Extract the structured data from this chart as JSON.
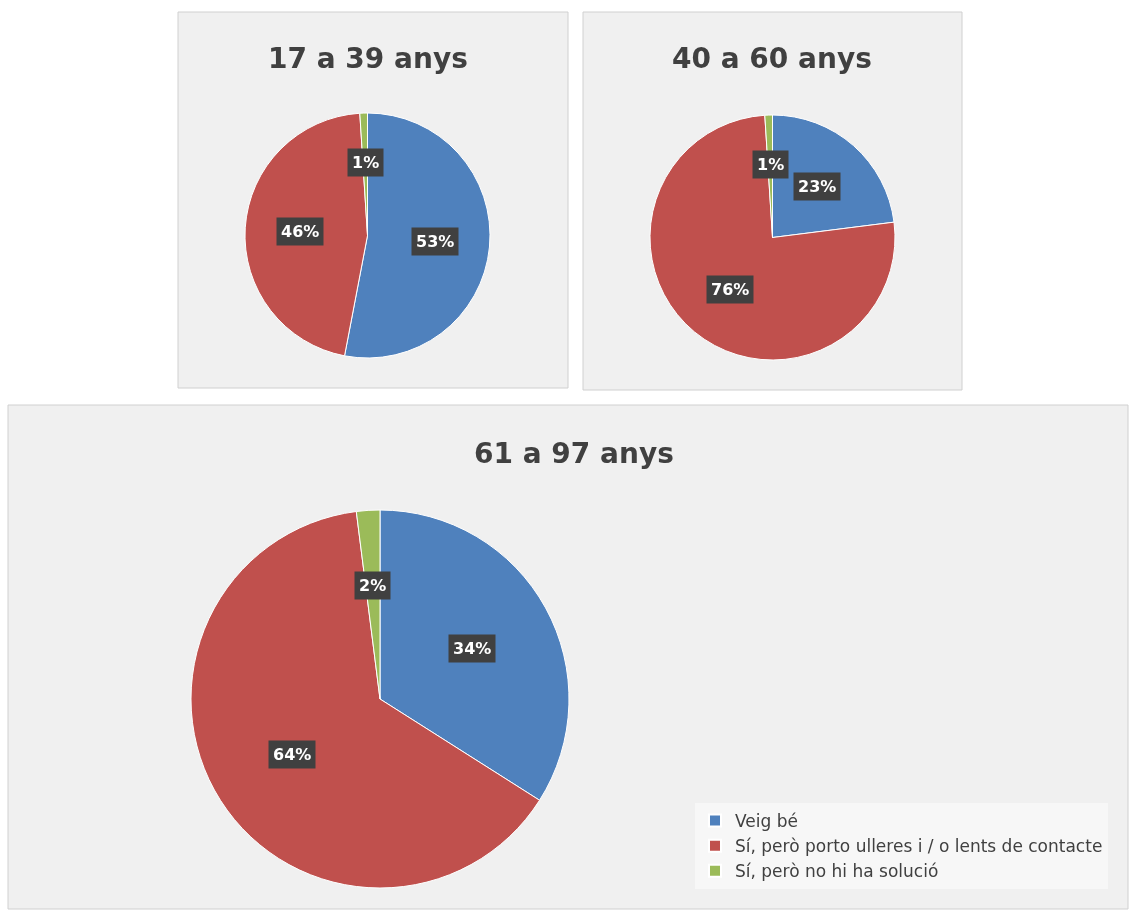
{
  "chart_data": [
    {
      "type": "pie",
      "title": "17 a 39 anys",
      "categories": [
        null,
        null,
        null
      ],
      "values": [
        53,
        46,
        1
      ],
      "value_labels": [
        "53%",
        "46%",
        "1%"
      ],
      "colors": [
        "#4f81bd",
        "#c0504d",
        "#9bbb59"
      ],
      "legend": false
    },
    {
      "type": "pie",
      "title": "40 a 60 anys",
      "categories": [
        null,
        null,
        null
      ],
      "values": [
        23,
        76,
        1
      ],
      "value_labels": [
        "23%",
        "76%",
        "1%"
      ],
      "colors": [
        "#4f81bd",
        "#c0504d",
        "#9bbb59"
      ],
      "legend": false
    },
    {
      "type": "pie",
      "title": "61 a 97 anys",
      "categories": [
        "Veig bé",
        "Sí, però porto ulleres i / o lents de contacte",
        "Sí, però no hi ha solució"
      ],
      "values": [
        34,
        64,
        2
      ],
      "value_labels": [
        "34%",
        "64%",
        "2%"
      ],
      "colors": [
        "#4f81bd",
        "#c0504d",
        "#9bbb59"
      ],
      "legend": "bottom right"
    }
  ]
}
